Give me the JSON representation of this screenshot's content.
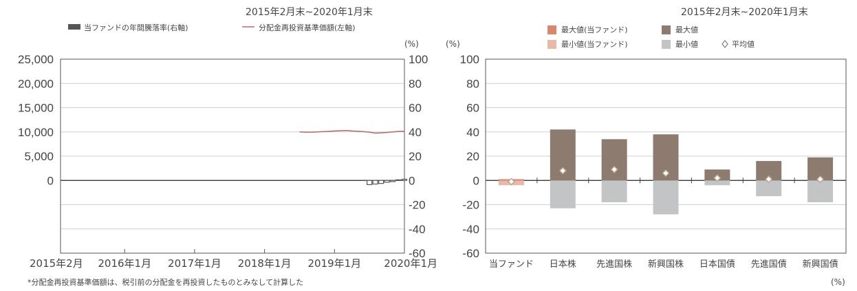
{
  "left_chart": {
    "period": "2015年2月末~2020年1月末",
    "legend": {
      "bar_label": "当ファンドの年間騰落率(右軸)",
      "line_label": "分配金再投資基準価額(左軸)"
    },
    "unit_right": "(%)",
    "footnote": "*分配金再投資基準価額は、税引前の分配金を再投資したものとみなして計算した"
  },
  "right_chart": {
    "period": "2015年2月末~2020年1月末",
    "unit_left": "(%)",
    "unit_bottom": "(%)",
    "legend": {
      "max_fund": "最大値(当ファンド)",
      "max": "最大値",
      "min_fund": "最小値(当ファンド)",
      "min": "最小値",
      "avg": "平均値"
    }
  },
  "colors": {
    "line": "#b06a6a",
    "fund_bar": "#555555",
    "max_fund": "#d9866e",
    "max": "#8c7b6e",
    "min_fund": "#e8b8a8",
    "min": "#c3c4c6",
    "avg_marker": "#b8a98c"
  },
  "chart_data": [
    {
      "type": "line",
      "x_tick_labels": [
        "2015年2月",
        "2016年1月",
        "2017年1月",
        "2018年1月",
        "2019年1月",
        "2020年1月"
      ],
      "left_axis": {
        "ylim": [
          -15000,
          25000
        ],
        "ticks": [
          "25,000",
          "20,000",
          "15,000",
          "10,000",
          "5,000",
          "0"
        ]
      },
      "right_axis": {
        "ylim": [
          -60,
          100
        ],
        "ticks": [
          "100",
          "80",
          "60",
          "40",
          "20",
          "0",
          "-20",
          "-40",
          "-60"
        ]
      },
      "series": [
        {
          "name": "分配金再投資基準価額(左軸)",
          "axis": "left",
          "x": [
            "2018-07",
            "2018-08",
            "2018-09",
            "2018-10",
            "2018-11",
            "2018-12",
            "2019-01",
            "2019-02",
            "2019-03",
            "2019-04",
            "2019-05",
            "2019-06",
            "2019-07",
            "2019-08",
            "2019-09",
            "2019-10",
            "2019-11",
            "2019-12",
            "2020-01"
          ],
          "values": [
            10000,
            9950,
            9950,
            10000,
            10050,
            10100,
            10200,
            10250,
            10300,
            10200,
            10150,
            10050,
            9950,
            9750,
            9800,
            9900,
            10000,
            10100,
            10150
          ]
        },
        {
          "name": "当ファンドの年間騰落率(右軸)",
          "axis": "right",
          "type": "bar",
          "x": [
            "2019-07",
            "2019-08",
            "2019-09",
            "2019-10",
            "2019-11",
            "2019-12",
            "2020-01"
          ],
          "values": [
            -3.5,
            -3,
            -2.5,
            -1.5,
            -1,
            0.5,
            1
          ]
        }
      ],
      "grid": true
    },
    {
      "type": "bar",
      "categories": [
        "当ファンド",
        "日本株",
        "先進国株",
        "新興国株",
        "日本国債",
        "先進国債",
        "新興国債"
      ],
      "ylim": [
        -60,
        100
      ],
      "y_ticks": [
        "100",
        "80",
        "60",
        "40",
        "20",
        "0",
        "-20",
        "-40",
        "-60"
      ],
      "series": [
        {
          "name": "最大値",
          "values": [
            1,
            42,
            34,
            38,
            9,
            16,
            19
          ]
        },
        {
          "name": "最小値",
          "values": [
            -4,
            -23,
            -18,
            -28,
            -4,
            -13,
            -18
          ]
        },
        {
          "name": "平均値",
          "values": [
            -1,
            8,
            9,
            6,
            2,
            1,
            1
          ]
        }
      ],
      "grid": true
    }
  ]
}
